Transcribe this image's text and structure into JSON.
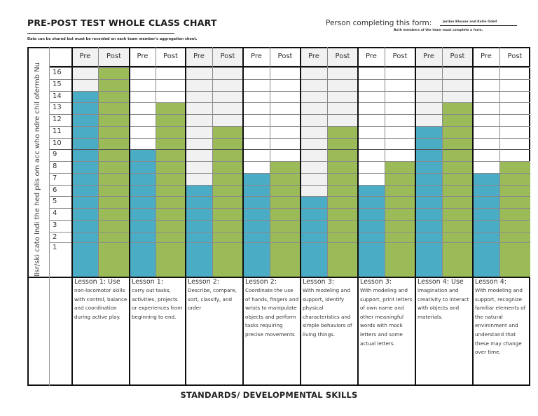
{
  "header": {
    "title": "PRE-POST TEST WHOLE CLASS CHART",
    "note": "Data can be shared but must be recorded on each team member's aggregation sheet.",
    "person_label": "Person completing this form:",
    "person_value": "Jordan Blosser and Katie Odell",
    "person_note": "Both members of the team must complete a form."
  },
  "y_axis_label": "llsr/ski cato Indi the hed plis om acc who ndre chil ofermb Nu",
  "footer": "STANDARDS/ DEVELOPMENTAL SKILLS",
  "colors": {
    "pre": "#4bacc6",
    "post": "#9bbb59",
    "shade": "#f1f1f1"
  },
  "column_headers": {
    "pre": "Pre",
    "post": "Post"
  },
  "row_numbers": [
    "16",
    "15",
    "14",
    "13",
    "12",
    "11",
    "10",
    "9",
    "8",
    "7",
    "6",
    "5",
    "4",
    "3",
    "2",
    "1"
  ],
  "lessons": [
    {
      "title": "Lesson 1: Use",
      "body": "non-locomotor skills with control, balance and coordination during active play."
    },
    {
      "title": "Lesson 1:",
      "body": "carry out tasks, activities, projects or experiences from beginning to end."
    },
    {
      "title": "Lesson 2:",
      "body": "Describe, compare, sort, classify, and order"
    },
    {
      "title": "Lesson 2:",
      "body": "Coordinate the use of hands, fingers and wrists to manipulate objects and perform tasks requiring precise movements"
    },
    {
      "title": "Lesson 3:",
      "body": "With modeling and support, identify physical characteristics and simple behaviors of living things."
    },
    {
      "title": "Lesson 3:",
      "body": "With modeling and support, print letters of own name and other meaningful words with mock letters and some actual letters."
    },
    {
      "title": "Lesson 4: Use",
      "body": "imagination and creativity to interact with objects and materials."
    },
    {
      "title": "Lesson 4:",
      "body": "With modeling and support, recognize familiar elements of the natural environment and understand that these may change over time."
    }
  ],
  "chart_data": {
    "type": "bar",
    "title": "PRE-POST TEST WHOLE CLASS CHART",
    "xlabel": "STANDARDS/ DEVELOPMENTAL SKILLS",
    "ylabel": "Number of children who accomplished the indicator/skill",
    "ylim": [
      0,
      16
    ],
    "categories": [
      "Lesson 1: Use non-locomotor skills with control, balance and coordination during active play.",
      "Lesson 1: carry out tasks, activities, projects or experiences from beginning to end.",
      "Lesson 2: Describe, compare, sort, classify, and order",
      "Lesson 2: Coordinate the use of hands, fingers and wrists to manipulate objects and perform tasks requiring precise movements",
      "Lesson 3: With modeling and support, identify physical characteristics and simple behaviors of living things.",
      "Lesson 3: With modeling and support, print letters of own name and other meaningful words with mock letters and some actual letters.",
      "Lesson 4: Use imagination and creativity to interact with objects and materials.",
      "Lesson 4: With modeling and support, recognize familiar elements of the natural environment and understand that these may change over time."
    ],
    "series": [
      {
        "name": "Pre",
        "color": "#4bacc6",
        "values": [
          14,
          9,
          6,
          7,
          5,
          6,
          11,
          7
        ]
      },
      {
        "name": "Post",
        "color": "#9bbb59",
        "values": [
          16,
          13,
          11,
          8,
          11,
          8,
          13,
          8
        ]
      }
    ],
    "grid": true,
    "legend": "column headers (Pre / Post)"
  }
}
